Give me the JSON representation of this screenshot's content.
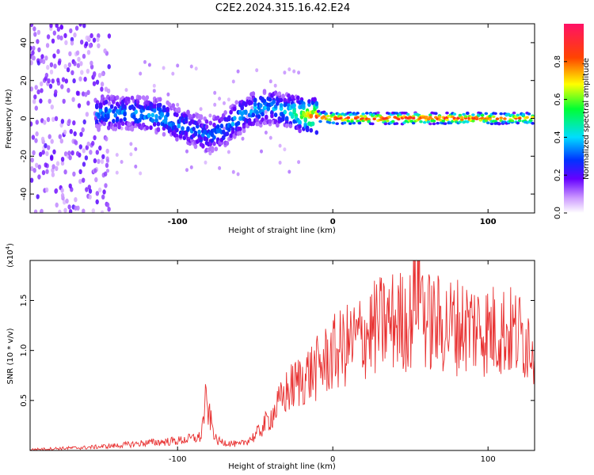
{
  "title": "C2E2.2024.315.16.42.E24",
  "chart_data": [
    {
      "type": "heatmap",
      "title": "C2E2.2024.315.16.42.E24",
      "xlabel": "Height of straight line (km)",
      "ylabel": "Frequency (Hz)",
      "xlim": [
        -195,
        130
      ],
      "ylim": [
        -50,
        50
      ],
      "xticks": [
        -100,
        0,
        100
      ],
      "yticks": [
        -40,
        -20,
        0,
        20,
        40
      ],
      "colorbar": {
        "label": "Normalized spectral amplitude",
        "range": [
          0,
          1
        ],
        "ticks": [
          "0.0",
          "0.2",
          "0.4",
          "0.6",
          "0.8"
        ]
      },
      "ridge": {
        "x": [
          -150,
          -130,
          -110,
          -100,
          -90,
          -80,
          -70,
          -60,
          -50,
          -40,
          -30,
          -20,
          -10,
          0,
          20,
          40,
          60,
          80,
          100,
          120,
          130
        ],
        "center_hz": [
          3,
          3,
          1,
          -3,
          -6,
          -9,
          -6,
          1,
          5,
          6,
          4,
          2,
          1,
          0,
          0,
          0,
          0,
          0,
          0,
          0,
          0
        ],
        "amplitude": [
          0.35,
          0.35,
          0.4,
          0.35,
          0.32,
          0.32,
          0.33,
          0.38,
          0.38,
          0.35,
          0.42,
          0.6,
          0.85,
          0.9,
          0.9,
          0.92,
          0.9,
          0.9,
          0.85,
          0.8,
          0.78
        ]
      }
    },
    {
      "type": "line",
      "xlabel": "Height of straight line (km)",
      "ylabel": "SNR (10 * v/v)",
      "scale_label": "(x10",
      "scale_exp": "4",
      "xlim": [
        -195,
        130
      ],
      "ylim": [
        0,
        1.9
      ],
      "xticks": [
        -100,
        0,
        100
      ],
      "yticks": [
        "0.5",
        "1.0",
        "1.5"
      ],
      "series": [
        {
          "color": "#e83030",
          "x": [
            -195,
            -180,
            -160,
            -140,
            -120,
            -100,
            -85,
            -82,
            -75,
            -60,
            -50,
            -40,
            -30,
            -20,
            -10,
            0,
            10,
            20,
            30,
            40,
            50,
            55,
            60,
            70,
            80,
            90,
            100,
            110,
            120,
            130
          ],
          "y": [
            0.01,
            0.02,
            0.03,
            0.05,
            0.08,
            0.1,
            0.14,
            0.5,
            0.1,
            0.06,
            0.15,
            0.35,
            0.6,
            0.75,
            0.85,
            1.0,
            1.1,
            1.2,
            1.3,
            1.35,
            1.35,
            1.9,
            1.35,
            1.3,
            1.3,
            1.3,
            1.25,
            1.25,
            1.2,
            1.15
          ]
        }
      ]
    }
  ]
}
